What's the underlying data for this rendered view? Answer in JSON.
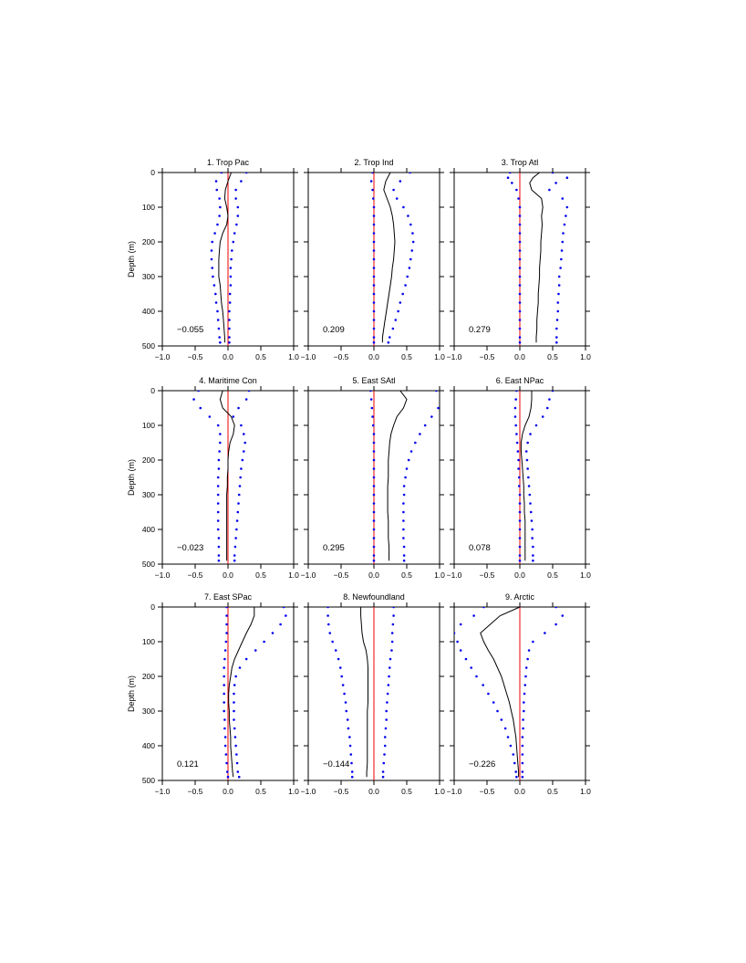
{
  "figure": {
    "ylabel": "Depth (m)",
    "colors": {
      "profile": "#000000",
      "bounds": "#0000ee",
      "zero_line": "#ee0000",
      "axes": "#000000"
    }
  },
  "chart_data": [
    {
      "type": "line",
      "title": "1. Trop Pac",
      "value_label": "−0.055",
      "xlim": [
        -1.0,
        1.0
      ],
      "ylim": [
        500,
        0
      ],
      "y_inverted": true,
      "xticks": [
        "−1.0",
        "−0.5",
        "0.0",
        "0.5",
        "1.0"
      ],
      "yticks": [
        "0",
        "100",
        "200",
        "300",
        "400",
        "500"
      ],
      "depth": [
        0,
        25,
        50,
        75,
        100,
        125,
        150,
        175,
        200,
        225,
        250,
        275,
        300,
        325,
        350,
        375,
        400,
        425,
        450,
        475,
        490
      ],
      "mean": [
        0.05,
        0.0,
        -0.04,
        -0.05,
        -0.02,
        0.0,
        -0.02,
        -0.08,
        -0.12,
        -0.13,
        -0.14,
        -0.14,
        -0.14,
        -0.12,
        -0.11,
        -0.1,
        -0.08,
        -0.07,
        -0.06,
        -0.05,
        -0.05
      ],
      "lower": [
        -0.1,
        -0.18,
        -0.17,
        -0.13,
        -0.12,
        -0.13,
        -0.16,
        -0.2,
        -0.24,
        -0.25,
        -0.25,
        -0.24,
        -0.23,
        -0.21,
        -0.19,
        -0.18,
        -0.16,
        -0.15,
        -0.14,
        -0.13,
        -0.12
      ],
      "upper": [
        0.28,
        0.2,
        0.12,
        0.12,
        0.15,
        0.15,
        0.13,
        0.1,
        0.08,
        0.06,
        0.05,
        0.04,
        0.04,
        0.04,
        0.03,
        0.03,
        0.02,
        0.02,
        0.02,
        0.02,
        0.02
      ]
    },
    {
      "type": "line",
      "title": "2. Trop Ind",
      "value_label": "0.209",
      "xlim": [
        -1.0,
        1.0
      ],
      "ylim": [
        500,
        0
      ],
      "y_inverted": true,
      "xticks": [
        "−1.0",
        "−0.5",
        "0.0",
        "0.5",
        "1.0"
      ],
      "yticks": [
        "0",
        "100",
        "200",
        "300",
        "400",
        "500"
      ],
      "depth": [
        0,
        25,
        50,
        75,
        100,
        125,
        150,
        175,
        200,
        225,
        250,
        275,
        300,
        325,
        350,
        375,
        400,
        425,
        450,
        475,
        490
      ],
      "mean": [
        0.25,
        0.18,
        0.15,
        0.2,
        0.25,
        0.28,
        0.3,
        0.31,
        0.32,
        0.31,
        0.3,
        0.28,
        0.27,
        0.25,
        0.23,
        0.21,
        0.19,
        0.17,
        0.15,
        0.13,
        0.13
      ],
      "lower": [
        -0.02,
        -0.04,
        -0.02,
        -0.01,
        0.0,
        0.0,
        0.0,
        0.0,
        0.0,
        0.0,
        0.0,
        0.0,
        0.0,
        0.0,
        0.0,
        0.0,
        0.0,
        0.0,
        0.0,
        0.0,
        0.0
      ],
      "upper": [
        0.55,
        0.4,
        0.3,
        0.35,
        0.45,
        0.52,
        0.56,
        0.59,
        0.6,
        0.58,
        0.56,
        0.54,
        0.51,
        0.48,
        0.44,
        0.4,
        0.37,
        0.33,
        0.29,
        0.24,
        0.22
      ]
    },
    {
      "type": "line",
      "title": "3. Trop Atl",
      "value_label": "0.279",
      "xlim": [
        -1.0,
        1.0
      ],
      "ylim": [
        500,
        0
      ],
      "y_inverted": true,
      "xticks": [
        "−1.0",
        "−0.5",
        "0.0",
        "0.5",
        "1.0"
      ],
      "yticks": [
        "0",
        "100",
        "200",
        "300",
        "400",
        "500"
      ],
      "depth": [
        0,
        15,
        30,
        50,
        75,
        100,
        125,
        150,
        175,
        200,
        225,
        250,
        275,
        300,
        325,
        350,
        375,
        400,
        425,
        450,
        475,
        490
      ],
      "mean": [
        0.3,
        0.2,
        0.15,
        0.18,
        0.33,
        0.35,
        0.33,
        0.34,
        0.33,
        0.32,
        0.32,
        0.31,
        0.3,
        0.3,
        0.29,
        0.28,
        0.28,
        0.27,
        0.26,
        0.26,
        0.25,
        0.25
      ],
      "lower": [
        -0.15,
        -0.18,
        -0.12,
        -0.05,
        -0.02,
        0.0,
        0.0,
        0.0,
        0.0,
        0.0,
        0.0,
        0.0,
        0.0,
        0.0,
        0.0,
        0.0,
        0.0,
        0.0,
        0.0,
        0.0,
        0.0,
        0.0
      ],
      "upper": [
        0.5,
        0.72,
        0.55,
        0.45,
        0.65,
        0.72,
        0.7,
        0.68,
        0.66,
        0.65,
        0.64,
        0.63,
        0.62,
        0.6,
        0.6,
        0.59,
        0.58,
        0.58,
        0.57,
        0.56,
        0.56,
        0.56
      ]
    },
    {
      "type": "line",
      "title": "4. Maritime Con",
      "value_label": "−0.023",
      "xlim": [
        -1.0,
        1.0
      ],
      "ylim": [
        500,
        0
      ],
      "y_inverted": true,
      "xticks": [
        "−1.0",
        "−0.5",
        "0.0",
        "0.5",
        "1.0"
      ],
      "yticks": [
        "0",
        "100",
        "200",
        "300",
        "400",
        "500"
      ],
      "depth": [
        0,
        25,
        50,
        75,
        100,
        125,
        150,
        175,
        200,
        225,
        250,
        275,
        300,
        325,
        350,
        375,
        400,
        425,
        450,
        475,
        490
      ],
      "mean": [
        -0.08,
        -0.12,
        -0.08,
        0.05,
        0.1,
        0.08,
        0.03,
        0.01,
        0.0,
        0.0,
        -0.01,
        -0.01,
        -0.02,
        -0.02,
        -0.02,
        -0.02,
        -0.02,
        -0.02,
        -0.02,
        -0.02,
        -0.02
      ],
      "lower": [
        -0.45,
        -0.52,
        -0.42,
        -0.28,
        -0.15,
        -0.12,
        -0.12,
        -0.13,
        -0.14,
        -0.14,
        -0.15,
        -0.15,
        -0.15,
        -0.15,
        -0.15,
        -0.15,
        -0.15,
        -0.14,
        -0.14,
        -0.14,
        -0.14
      ],
      "upper": [
        0.32,
        0.28,
        0.16,
        0.08,
        0.2,
        0.24,
        0.26,
        0.24,
        0.22,
        0.2,
        0.19,
        0.18,
        0.17,
        0.16,
        0.15,
        0.14,
        0.13,
        0.12,
        0.11,
        0.1,
        0.1
      ]
    },
    {
      "type": "line",
      "title": "5. East SAtl",
      "value_label": "0.295",
      "xlim": [
        -1.0,
        1.0
      ],
      "ylim": [
        500,
        0
      ],
      "y_inverted": true,
      "xticks": [
        "−1.0",
        "−0.5",
        "0.0",
        "0.5",
        "1.0"
      ],
      "yticks": [
        "0",
        "100",
        "200",
        "300",
        "400",
        "500"
      ],
      "depth": [
        0,
        25,
        50,
        75,
        100,
        125,
        150,
        175,
        200,
        225,
        250,
        275,
        300,
        325,
        350,
        375,
        400,
        425,
        450,
        475,
        490
      ],
      "mean": [
        0.4,
        0.5,
        0.45,
        0.35,
        0.3,
        0.26,
        0.24,
        0.23,
        0.22,
        0.22,
        0.22,
        0.21,
        0.21,
        0.21,
        0.21,
        0.22,
        0.22,
        0.22,
        0.23,
        0.23,
        0.23
      ],
      "lower": [
        -0.05,
        -0.04,
        -0.03,
        -0.02,
        -0.01,
        0.0,
        0.0,
        0.0,
        0.0,
        0.0,
        0.0,
        0.0,
        0.0,
        0.0,
        0.0,
        0.0,
        0.0,
        0.0,
        0.0,
        0.0,
        0.0
      ],
      "upper": [
        0.95,
        1.02,
        0.98,
        0.88,
        0.78,
        0.7,
        0.63,
        0.57,
        0.53,
        0.5,
        0.48,
        0.46,
        0.46,
        0.45,
        0.45,
        0.45,
        0.45,
        0.45,
        0.46,
        0.46,
        0.46
      ]
    },
    {
      "type": "line",
      "title": "6. East NPac",
      "value_label": "0.078",
      "xlim": [
        -1.0,
        1.0
      ],
      "ylim": [
        500,
        0
      ],
      "y_inverted": true,
      "xticks": [
        "−1.0",
        "−0.5",
        "0.0",
        "0.5",
        "1.0"
      ],
      "yticks": [
        "0",
        "100",
        "200",
        "300",
        "400",
        "500"
      ],
      "depth": [
        0,
        25,
        50,
        75,
        100,
        125,
        150,
        175,
        200,
        225,
        250,
        275,
        300,
        325,
        350,
        375,
        400,
        425,
        450,
        475,
        490
      ],
      "mean": [
        0.18,
        0.18,
        0.17,
        0.14,
        0.08,
        0.04,
        0.02,
        0.02,
        0.03,
        0.04,
        0.05,
        0.06,
        0.06,
        0.07,
        0.07,
        0.08,
        0.08,
        0.08,
        0.08,
        0.08,
        0.08
      ],
      "lower": [
        -0.05,
        -0.06,
        -0.07,
        -0.07,
        -0.06,
        -0.05,
        -0.04,
        -0.03,
        -0.02,
        -0.02,
        -0.01,
        -0.01,
        0.0,
        0.0,
        0.0,
        0.0,
        0.0,
        0.0,
        0.0,
        0.0,
        0.0
      ],
      "upper": [
        0.5,
        0.45,
        0.42,
        0.35,
        0.25,
        0.16,
        0.12,
        0.1,
        0.11,
        0.12,
        0.13,
        0.14,
        0.15,
        0.16,
        0.17,
        0.18,
        0.19,
        0.19,
        0.2,
        0.2,
        0.2
      ]
    },
    {
      "type": "line",
      "title": "7. East SPac",
      "value_label": "0.121",
      "xlim": [
        -1.0,
        1.0
      ],
      "ylim": [
        500,
        0
      ],
      "y_inverted": true,
      "xticks": [
        "−1.0",
        "−0.5",
        "0.0",
        "0.5",
        "1.0"
      ],
      "yticks": [
        "0",
        "100",
        "200",
        "300",
        "400",
        "500"
      ],
      "depth": [
        0,
        25,
        50,
        75,
        100,
        125,
        150,
        175,
        200,
        225,
        250,
        275,
        300,
        325,
        350,
        375,
        400,
        425,
        450,
        475,
        490
      ],
      "mean": [
        0.4,
        0.4,
        0.35,
        0.28,
        0.22,
        0.16,
        0.1,
        0.06,
        0.04,
        0.02,
        0.01,
        0.01,
        0.02,
        0.02,
        0.03,
        0.04,
        0.04,
        0.05,
        0.06,
        0.07,
        0.08
      ],
      "lower": [
        -0.02,
        -0.02,
        -0.02,
        -0.02,
        -0.03,
        -0.04,
        -0.05,
        -0.06,
        -0.06,
        -0.06,
        -0.06,
        -0.06,
        -0.06,
        -0.05,
        -0.05,
        -0.04,
        -0.04,
        -0.03,
        -0.02,
        -0.01,
        0.0
      ],
      "upper": [
        0.85,
        0.88,
        0.8,
        0.68,
        0.55,
        0.42,
        0.28,
        0.18,
        0.12,
        0.1,
        0.09,
        0.09,
        0.09,
        0.09,
        0.1,
        0.11,
        0.12,
        0.13,
        0.14,
        0.15,
        0.17
      ]
    },
    {
      "type": "line",
      "title": "8. Newfoundland",
      "value_label": "−0.144",
      "xlim": [
        -1.0,
        1.0
      ],
      "ylim": [
        500,
        0
      ],
      "y_inverted": true,
      "xticks": [
        "−1.0",
        "−0.5",
        "0.0",
        "0.5",
        "1.0"
      ],
      "yticks": [
        "0",
        "100",
        "200",
        "300",
        "400",
        "500"
      ],
      "depth": [
        0,
        25,
        50,
        75,
        100,
        125,
        150,
        175,
        200,
        225,
        250,
        275,
        300,
        325,
        350,
        375,
        400,
        425,
        450,
        475,
        490
      ],
      "mean": [
        -0.2,
        -0.2,
        -0.19,
        -0.18,
        -0.16,
        -0.12,
        -0.1,
        -0.09,
        -0.09,
        -0.09,
        -0.09,
        -0.09,
        -0.1,
        -0.1,
        -0.1,
        -0.1,
        -0.1,
        -0.1,
        -0.1,
        -0.11,
        -0.11
      ],
      "lower": [
        -0.7,
        -0.7,
        -0.69,
        -0.67,
        -0.63,
        -0.58,
        -0.54,
        -0.51,
        -0.49,
        -0.47,
        -0.45,
        -0.43,
        -0.42,
        -0.4,
        -0.39,
        -0.37,
        -0.36,
        -0.35,
        -0.34,
        -0.33,
        -0.33
      ],
      "upper": [
        0.3,
        0.3,
        0.29,
        0.28,
        0.28,
        0.27,
        0.25,
        0.24,
        0.23,
        0.22,
        0.21,
        0.2,
        0.19,
        0.19,
        0.18,
        0.17,
        0.17,
        0.16,
        0.15,
        0.14,
        0.14
      ]
    },
    {
      "type": "line",
      "title": "9. Arctic",
      "value_label": "−0.226",
      "xlim": [
        -1.0,
        1.0
      ],
      "ylim": [
        500,
        0
      ],
      "y_inverted": true,
      "xticks": [
        "−1.0",
        "−0.5",
        "0.0",
        "0.5",
        "1.0"
      ],
      "yticks": [
        "0",
        "100",
        "200",
        "300",
        "400",
        "500"
      ],
      "depth": [
        0,
        25,
        50,
        75,
        100,
        125,
        150,
        175,
        200,
        225,
        250,
        275,
        300,
        325,
        350,
        375,
        400,
        425,
        450,
        475,
        490
      ],
      "mean": [
        0.0,
        -0.3,
        -0.45,
        -0.6,
        -0.55,
        -0.48,
        -0.4,
        -0.34,
        -0.28,
        -0.24,
        -0.2,
        -0.16,
        -0.13,
        -0.1,
        -0.08,
        -0.06,
        -0.05,
        -0.04,
        -0.03,
        -0.02,
        -0.02
      ],
      "lower": [
        -0.55,
        -0.7,
        -0.9,
        -1.0,
        -0.95,
        -0.9,
        -0.82,
        -0.74,
        -0.66,
        -0.56,
        -0.48,
        -0.4,
        -0.34,
        -0.28,
        -0.22,
        -0.18,
        -0.14,
        -0.1,
        -0.08,
        -0.06,
        -0.05
      ],
      "upper": [
        0.55,
        0.65,
        0.55,
        0.38,
        0.2,
        0.14,
        0.12,
        0.1,
        0.09,
        0.08,
        0.07,
        0.06,
        0.06,
        0.05,
        0.05,
        0.04,
        0.04,
        0.04,
        0.04,
        0.04,
        0.04
      ]
    }
  ]
}
